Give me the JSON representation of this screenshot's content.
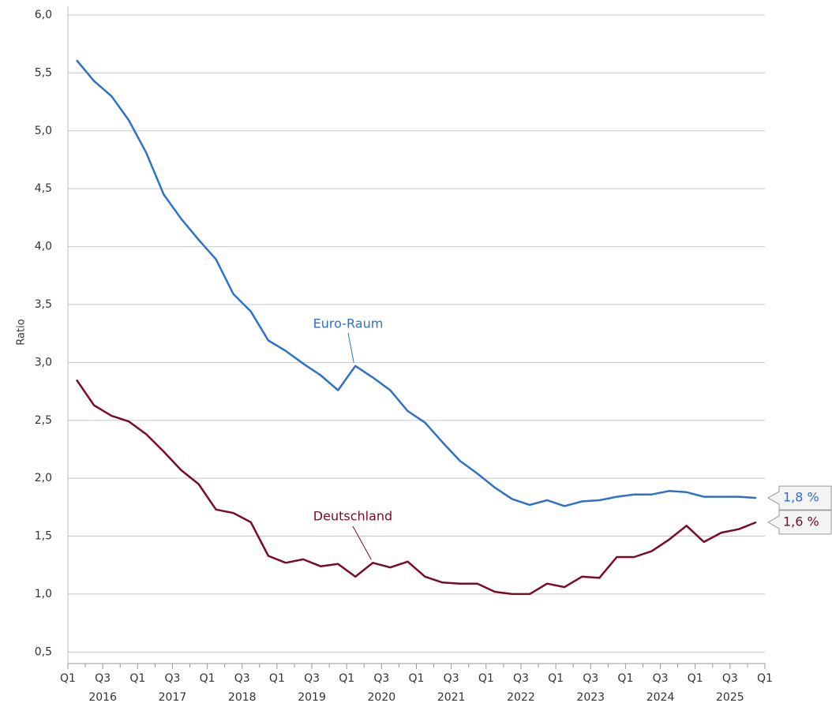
{
  "chart_data": {
    "type": "line",
    "y_label": "Ratio",
    "ylim": [
      0.4,
      6.0
    ],
    "yticks": [
      {
        "value": 0.5,
        "label": "0,5"
      },
      {
        "value": 1.0,
        "label": "1,0"
      },
      {
        "value": 1.5,
        "label": "1,5"
      },
      {
        "value": 2.0,
        "label": "2,0"
      },
      {
        "value": 2.5,
        "label": "2,5"
      },
      {
        "value": 3.0,
        "label": "3,0"
      },
      {
        "value": 3.5,
        "label": "3,5"
      },
      {
        "value": 4.0,
        "label": "4,0"
      },
      {
        "value": 4.5,
        "label": "4,5"
      },
      {
        "value": 5.0,
        "label": "5,0"
      },
      {
        "value": 5.5,
        "label": "5,5"
      },
      {
        "value": 6.0,
        "label": "6,0"
      }
    ],
    "grid": true,
    "xticks": [
      "Q1",
      "Q3",
      "Q1",
      "Q3",
      "Q1",
      "Q3",
      "Q1",
      "Q3",
      "Q1",
      "Q3",
      "Q1",
      "Q3",
      "Q1",
      "Q3",
      "Q1",
      "Q3",
      "Q1",
      "Q3",
      "Q1",
      "Q3",
      "Q1"
    ],
    "years": [
      "2016",
      "2017",
      "2018",
      "2019",
      "2020",
      "2021",
      "2022",
      "2023",
      "2024",
      "2025"
    ],
    "series": [
      {
        "name": "Euro-Raum",
        "color": "#2f70c8",
        "end_label": "1,8 %",
        "values": [
          5.61,
          5.43,
          5.3,
          5.09,
          4.81,
          4.45,
          4.24,
          4.06,
          3.89,
          3.59,
          3.44,
          3.19,
          3.1,
          2.99,
          2.89,
          2.76,
          2.97,
          2.87,
          2.76,
          2.58,
          2.48,
          2.31,
          2.15,
          2.04,
          1.92,
          1.82,
          1.77,
          1.81,
          1.76,
          1.8,
          1.81,
          1.84,
          1.86,
          1.86,
          1.89,
          1.88,
          1.84,
          1.84,
          1.84,
          1.83
        ]
      },
      {
        "name": "Deutschland",
        "color": "#7a0a25",
        "end_label": "1,6 %",
        "values": [
          2.85,
          2.63,
          2.54,
          2.49,
          2.38,
          2.23,
          2.07,
          1.95,
          1.73,
          1.7,
          1.62,
          1.33,
          1.27,
          1.3,
          1.24,
          1.26,
          1.15,
          1.27,
          1.23,
          1.28,
          1.15,
          1.1,
          1.09,
          1.09,
          1.02,
          1.0,
          1.0,
          1.09,
          1.06,
          1.15,
          1.14,
          1.32,
          1.32,
          1.37,
          1.47,
          1.59,
          1.45,
          1.53,
          1.56,
          1.62
        ]
      }
    ]
  }
}
